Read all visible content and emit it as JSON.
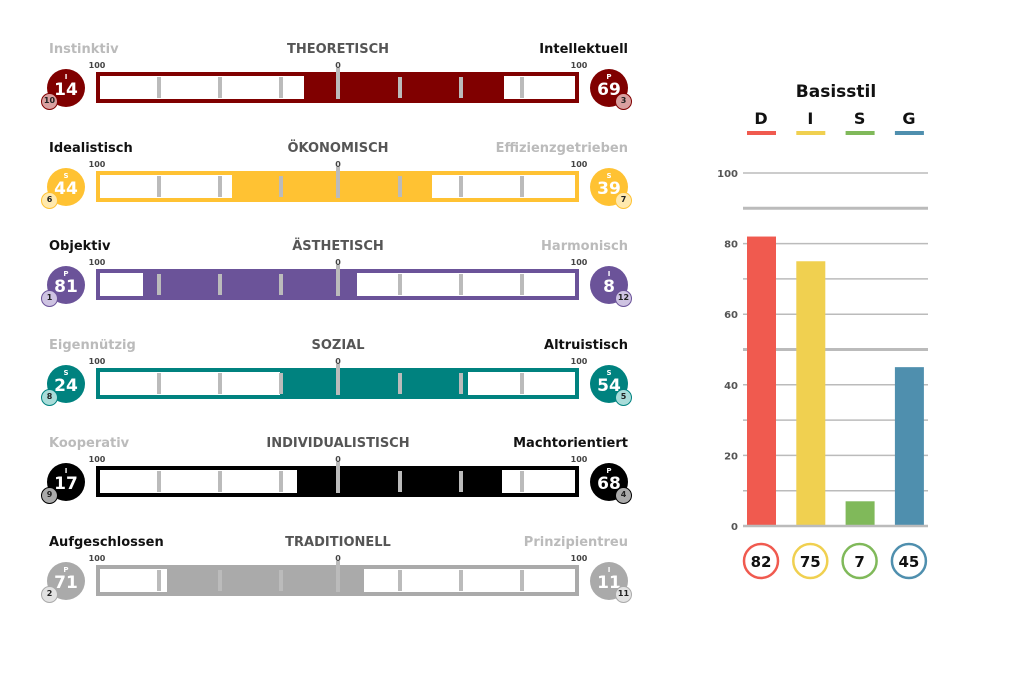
{
  "scale": {
    "left": "100",
    "center": "0",
    "right": "100"
  },
  "rows": [
    {
      "title": "THEORETISCH",
      "left_label": "Instinktiv",
      "right_label": "Intellektuell",
      "color": "#800000",
      "mini_color": "#d9a0a0",
      "left": {
        "value": 14,
        "letter": "I",
        "rank": "10"
      },
      "right": {
        "value": 69,
        "letter": "P",
        "rank": "3"
      }
    },
    {
      "title": "ÖKONOMISCH",
      "left_label": "Idealistisch",
      "right_label": "Effizienzgetrieben",
      "color": "#FFC233",
      "mini_color": "#FFE9AE",
      "left": {
        "value": 44,
        "letter": "S",
        "rank": "6"
      },
      "right": {
        "value": 39,
        "letter": "S",
        "rank": "7"
      }
    },
    {
      "title": "ÄSTHETISCH",
      "left_label": "Objektiv",
      "right_label": "Harmonisch",
      "color": "#6B5399",
      "mini_color": "#CEC3E2",
      "left": {
        "value": 81,
        "letter": "P",
        "rank": "1"
      },
      "right": {
        "value": 8,
        "letter": "I",
        "rank": "12"
      }
    },
    {
      "title": "SOZIAL",
      "left_label": "Eigennützig",
      "right_label": "Altruistisch",
      "color": "#00827F",
      "mini_color": "#A8DCD9",
      "left": {
        "value": 24,
        "letter": "S",
        "rank": "8"
      },
      "right": {
        "value": 54,
        "letter": "S",
        "rank": "5"
      }
    },
    {
      "title": "INDIVIDUALISTISCH",
      "left_label": "Kooperativ",
      "right_label": "Machtorientiert",
      "color": "#000000",
      "mini_color": "#aaaaaa",
      "left": {
        "value": 17,
        "letter": "I",
        "rank": "9"
      },
      "right": {
        "value": 68,
        "letter": "P",
        "rank": "4"
      }
    },
    {
      "title": "TRADITIONELL",
      "left_label": "Aufgeschlossen",
      "right_label": "Prinzipientreu",
      "color": "#AAAAAA",
      "mini_color": "#e2e2e2",
      "left": {
        "value": 71,
        "letter": "P",
        "rank": "2"
      },
      "right": {
        "value": 11,
        "letter": "I",
        "rank": "11"
      }
    }
  ],
  "chart_data": {
    "type": "bar",
    "title": "Basisstil",
    "categories": [
      "D",
      "I",
      "S",
      "G"
    ],
    "values": [
      82,
      75,
      7,
      45
    ],
    "value_labels": [
      "82",
      "75",
      "7",
      "45"
    ],
    "colors": [
      "#F05A4F",
      "#F0D050",
      "#80B95A",
      "#4F8FAE"
    ],
    "ylim": [
      0,
      100
    ],
    "yticks": [
      "0",
      "20",
      "40",
      "60",
      "80",
      "100"
    ],
    "grid": true,
    "legend": "top"
  }
}
